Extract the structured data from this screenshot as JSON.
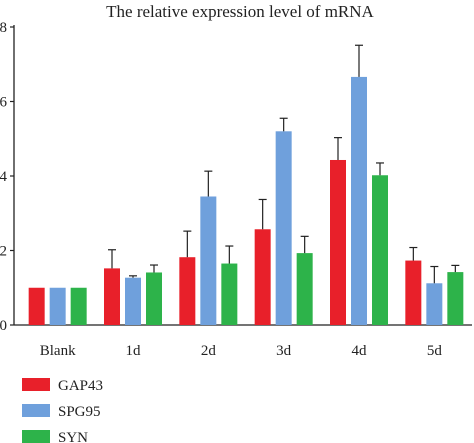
{
  "chart_data": {
    "type": "bar",
    "title": "The relative expression level of mRNA",
    "xlabel": "",
    "ylabel": "",
    "categories": [
      "Blank",
      "1d",
      "2d",
      "3d",
      "4d",
      "5d"
    ],
    "ylim": [
      0,
      8
    ],
    "yticks": [
      0,
      2,
      4,
      6,
      8
    ],
    "grid": false,
    "legend_position": "bottom-left",
    "series": [
      {
        "name": "GAP43",
        "color": "#e8202a",
        "values": [
          1.0,
          1.52,
          1.82,
          2.57,
          4.43,
          1.73
        ],
        "errors": [
          0.0,
          0.5,
          0.7,
          0.8,
          0.6,
          0.35
        ]
      },
      {
        "name": "SPG95",
        "color": "#6fa0dc",
        "values": [
          1.0,
          1.27,
          3.45,
          5.2,
          6.66,
          1.12
        ],
        "errors": [
          0.0,
          0.05,
          0.68,
          0.35,
          0.85,
          0.45
        ]
      },
      {
        "name": "SYN",
        "color": "#2db34a",
        "values": [
          1.0,
          1.41,
          1.65,
          1.93,
          4.02,
          1.42
        ],
        "errors": [
          0.0,
          0.2,
          0.47,
          0.45,
          0.33,
          0.18
        ]
      }
    ]
  }
}
